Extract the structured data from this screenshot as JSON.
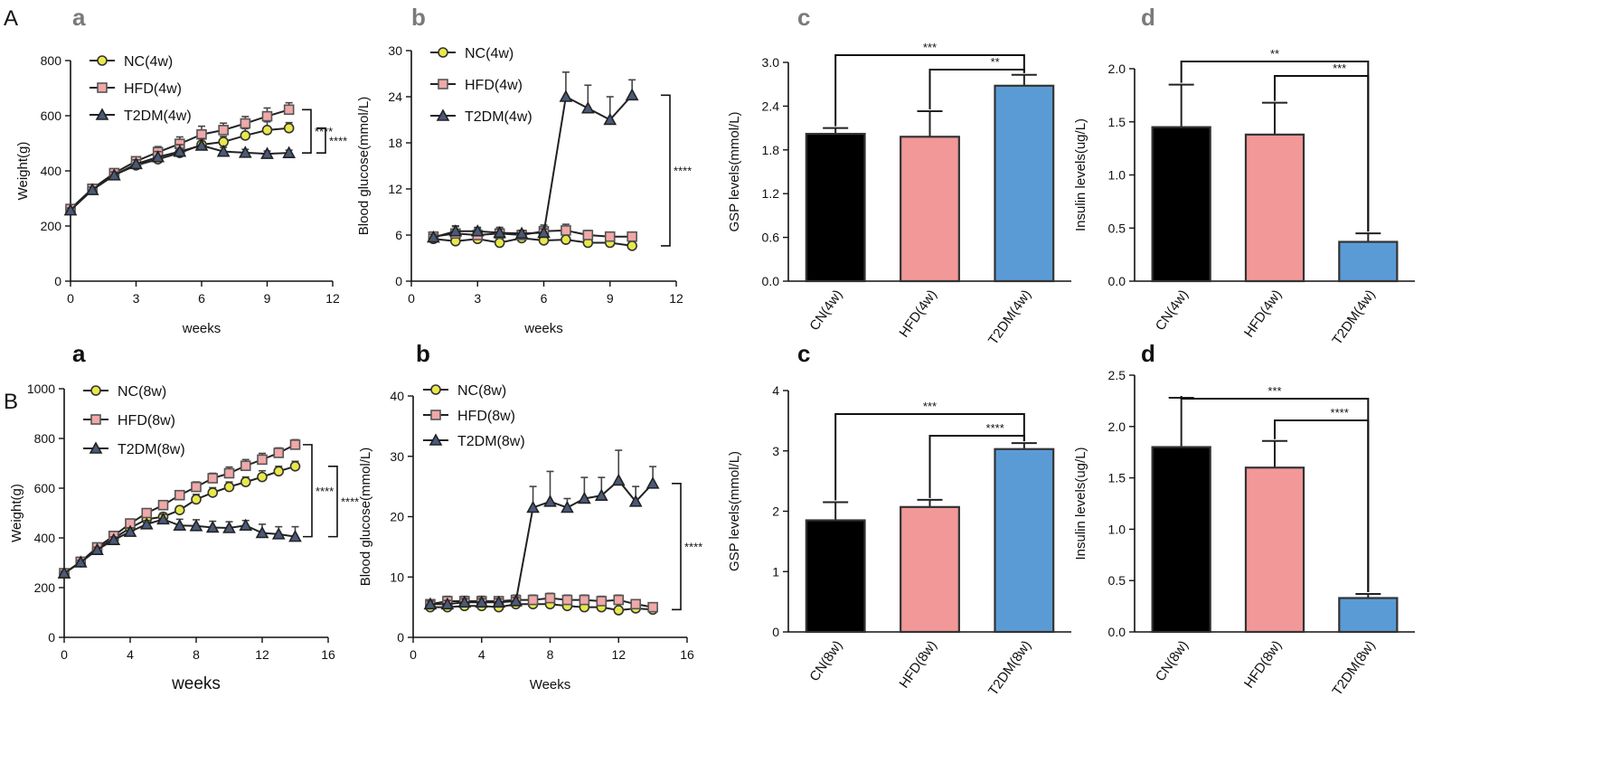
{
  "figure": {
    "row_labels": [
      "A",
      "B"
    ]
  },
  "colors": {
    "axis": "#111111",
    "nc_fill": "#e8e84a",
    "hfd_fill": "#f0a8a8",
    "t2dm_fill": "#4a5a78",
    "bar_cn": "#000000",
    "bar_hfd": "#f29898",
    "bar_t2dm": "#5b9bd5",
    "panel_letter_top": "#7a7a7a",
    "panel_letter_bottom": "#111111"
  },
  "chart_data": [
    {
      "id": "A-a",
      "panel": "a",
      "row": "A",
      "type": "line",
      "title": "",
      "xlabel": "weeks",
      "ylabel": "Weight(g)",
      "xlim": [
        0,
        12
      ],
      "ylim": [
        0,
        800
      ],
      "xticks": [
        0,
        3,
        6,
        9,
        12
      ],
      "yticks": [
        0,
        200,
        400,
        600,
        800
      ],
      "x": [
        0,
        1,
        2,
        3,
        4,
        5,
        6,
        7,
        8,
        9,
        10
      ],
      "series": [
        {
          "name": "NC(4w)",
          "marker": "circle",
          "values": [
            262,
            335,
            385,
            420,
            442,
            465,
            495,
            505,
            528,
            548,
            555
          ],
          "err": [
            8,
            10,
            12,
            15,
            20,
            25,
            30,
            20,
            25,
            30,
            20
          ]
        },
        {
          "name": "HFD(4w)",
          "marker": "square",
          "values": [
            262,
            335,
            392,
            435,
            468,
            498,
            532,
            548,
            572,
            598,
            622
          ],
          "err": [
            8,
            10,
            12,
            15,
            20,
            25,
            30,
            25,
            25,
            30,
            25
          ]
        },
        {
          "name": "T2DM(4w)",
          "marker": "triangle",
          "values": [
            257,
            331,
            384,
            425,
            450,
            470,
            492,
            470,
            466,
            462,
            465
          ],
          "err": [
            8,
            10,
            12,
            15,
            20,
            25,
            25,
            15,
            12,
            10,
            10
          ]
        }
      ],
      "significance": [
        {
          "label": "****",
          "from": "HFD(4w)",
          "to": "T2DM(4w)"
        },
        {
          "label": "****",
          "from": "NC(4w)",
          "to": "T2DM(4w)"
        }
      ]
    },
    {
      "id": "A-b",
      "panel": "b",
      "row": "A",
      "type": "line",
      "title": "",
      "xlabel": "weeks",
      "ylabel": "Blood glucose(mmol/L)",
      "xlim": [
        0,
        12
      ],
      "ylim": [
        0,
        30
      ],
      "xticks": [
        0,
        3,
        6,
        9,
        12
      ],
      "yticks": [
        0,
        6,
        12,
        18,
        24,
        30
      ],
      "x": [
        1,
        2,
        3,
        4,
        5,
        6,
        7,
        8,
        9,
        10
      ],
      "series": [
        {
          "name": "NC(4w)",
          "marker": "circle",
          "values": [
            5.5,
            5.2,
            5.5,
            5.0,
            5.6,
            5.3,
            5.4,
            5.0,
            5.0,
            4.6
          ],
          "err": [
            0.3,
            0.4,
            0.5,
            0.4,
            0.4,
            0.4,
            0.6,
            0.4,
            0.4,
            0.4
          ]
        },
        {
          "name": "HFD(4w)",
          "marker": "square",
          "values": [
            5.8,
            6.2,
            6.0,
            6.2,
            6.0,
            6.5,
            6.6,
            6.0,
            5.8,
            5.8
          ],
          "err": [
            0.5,
            1.0,
            0.8,
            0.8,
            0.6,
            0.8,
            0.8,
            0.6,
            0.5,
            0.5
          ]
        },
        {
          "name": "T2DM(4w)",
          "marker": "triangle",
          "values": [
            5.7,
            6.5,
            6.5,
            6.3,
            6.2,
            6.3,
            24.0,
            22.5,
            21.0,
            24.2
          ],
          "err": [
            0.4,
            0.6,
            0.5,
            0.5,
            0.4,
            0.5,
            3.2,
            3.0,
            3.0,
            2.0
          ]
        }
      ],
      "significance": [
        {
          "label": "****",
          "from": "T2DM(4w)",
          "to": "NC(4w)"
        }
      ]
    },
    {
      "id": "A-c",
      "panel": "c",
      "row": "A",
      "type": "bar",
      "title": "",
      "xlabel": "",
      "ylabel": "GSP levels(mmol/L)",
      "ylim": [
        0,
        3.0
      ],
      "yticks": [
        "0.0",
        "0.6",
        "1.2",
        "1.8",
        "2.4",
        "3.0"
      ],
      "categories": [
        "CN(4w)",
        "HFD(4w)",
        "T2DM(4w)"
      ],
      "values": [
        2.02,
        1.98,
        2.68
      ],
      "err": [
        0.08,
        0.35,
        0.15
      ],
      "significance": [
        {
          "label": "***",
          "from": "CN(4w)",
          "to": "T2DM(4w)"
        },
        {
          "label": "**",
          "from": "HFD(4w)",
          "to": "T2DM(4w)"
        }
      ]
    },
    {
      "id": "A-d",
      "panel": "d",
      "row": "A",
      "type": "bar",
      "title": "",
      "xlabel": "",
      "ylabel": "Insulin levels(ug/L)",
      "ylim": [
        0,
        2.0
      ],
      "yticks": [
        "0.0",
        "0.5",
        "1.0",
        "1.5",
        "2.0"
      ],
      "categories": [
        "CN(4w)",
        "HFD(4w)",
        "T2DM(4w)"
      ],
      "values": [
        1.45,
        1.38,
        0.37
      ],
      "err": [
        0.4,
        0.3,
        0.08
      ],
      "significance": [
        {
          "label": "**",
          "from": "CN(4w)",
          "to": "T2DM(4w)"
        },
        {
          "label": "***",
          "from": "HFD(4w)",
          "to": "T2DM(4w)"
        }
      ]
    },
    {
      "id": "B-a",
      "panel": "a",
      "row": "B",
      "type": "line",
      "title": "",
      "xlabel": "weeks",
      "ylabel": "Weight(g)",
      "xlim": [
        0,
        16
      ],
      "ylim": [
        0,
        1000
      ],
      "xticks": [
        0,
        4,
        8,
        12,
        16
      ],
      "yticks": [
        0,
        200,
        400,
        600,
        800,
        1000
      ],
      "x": [
        0,
        1,
        2,
        3,
        4,
        5,
        6,
        7,
        8,
        9,
        10,
        11,
        12,
        13,
        14
      ],
      "series": [
        {
          "name": "NC(8w)",
          "marker": "circle",
          "values": [
            258,
            302,
            355,
            398,
            440,
            475,
            485,
            512,
            555,
            582,
            605,
            625,
            645,
            668,
            688
          ],
          "err": [
            8,
            8,
            10,
            12,
            15,
            15,
            15,
            15,
            20,
            20,
            20,
            20,
            25,
            20,
            20
          ]
        },
        {
          "name": "HFD(8w)",
          "marker": "square",
          "values": [
            258,
            304,
            362,
            408,
            458,
            500,
            532,
            572,
            605,
            640,
            660,
            690,
            715,
            742,
            775
          ],
          "err": [
            8,
            8,
            10,
            12,
            15,
            15,
            15,
            15,
            20,
            20,
            25,
            25,
            25,
            20,
            20
          ]
        },
        {
          "name": "T2DM(8w)",
          "marker": "triangle",
          "values": [
            258,
            302,
            352,
            392,
            425,
            455,
            475,
            450,
            448,
            442,
            440,
            450,
            420,
            415,
            405
          ],
          "err": [
            8,
            8,
            10,
            12,
            15,
            15,
            20,
            25,
            25,
            25,
            25,
            20,
            35,
            30,
            40
          ]
        }
      ],
      "significance": [
        {
          "label": "****",
          "from": "HFD(8w)",
          "to": "T2DM(8w)"
        },
        {
          "label": "****",
          "from": "NC(8w)",
          "to": "T2DM(8w)"
        }
      ]
    },
    {
      "id": "B-b",
      "panel": "b",
      "row": "B",
      "type": "line",
      "title": "",
      "xlabel": "Weeks",
      "ylabel": "Blood glucose(mmol/L)",
      "xlim": [
        0,
        16
      ],
      "ylim": [
        0,
        40
      ],
      "xticks": [
        0,
        4,
        8,
        12,
        16
      ],
      "yticks": [
        0,
        10,
        20,
        30,
        40
      ],
      "x": [
        1,
        2,
        3,
        4,
        5,
        6,
        7,
        8,
        9,
        10,
        11,
        12,
        13,
        14
      ],
      "series": [
        {
          "name": "NC(8w)",
          "marker": "circle",
          "values": [
            5.0,
            5.0,
            5.2,
            5.2,
            5.0,
            5.5,
            5.5,
            5.5,
            5.2,
            5.0,
            5.0,
            4.5,
            4.8,
            4.6
          ],
          "err": [
            0.5,
            0.5,
            0.8,
            0.8,
            0.6,
            0.6,
            0.8,
            0.8,
            0.6,
            0.6,
            0.6,
            0.5,
            0.6,
            0.5
          ]
        },
        {
          "name": "HFD(8w)",
          "marker": "square",
          "values": [
            5.5,
            6.0,
            6.0,
            6.0,
            6.0,
            6.2,
            6.2,
            6.5,
            6.2,
            6.2,
            6.0,
            6.2,
            5.5,
            5.0
          ],
          "err": [
            0.5,
            0.8,
            0.8,
            0.8,
            0.6,
            0.8,
            0.8,
            0.8,
            0.8,
            0.8,
            0.8,
            0.8,
            0.6,
            0.5
          ]
        },
        {
          "name": "T2DM(8w)",
          "marker": "triangle",
          "values": [
            5.5,
            5.5,
            5.8,
            5.8,
            5.8,
            6.0,
            21.5,
            22.5,
            21.5,
            23.0,
            23.5,
            26.0,
            22.5,
            25.5
          ],
          "err": [
            0.5,
            0.6,
            0.6,
            0.6,
            0.6,
            0.6,
            3.5,
            5.0,
            1.5,
            3.5,
            3.0,
            5.0,
            2.5,
            2.8
          ]
        }
      ],
      "significance": [
        {
          "label": "****",
          "from": "T2DM(8w)",
          "to": "NC(8w)"
        }
      ]
    },
    {
      "id": "B-c",
      "panel": "c",
      "row": "B",
      "type": "bar",
      "title": "",
      "xlabel": "",
      "ylabel": "GSP levels(mmol/L)",
      "ylim": [
        0,
        4
      ],
      "yticks": [
        "0",
        "1",
        "2",
        "3",
        "4"
      ],
      "categories": [
        "CN(8w)",
        "HFD(8w)",
        "T2DM(8w)"
      ],
      "values": [
        1.85,
        2.07,
        3.03
      ],
      "err": [
        0.3,
        0.12,
        0.1
      ],
      "significance": [
        {
          "label": "***",
          "from": "CN(8w)",
          "to": "T2DM(8w)"
        },
        {
          "label": "****",
          "from": "HFD(8w)",
          "to": "T2DM(8w)"
        }
      ]
    },
    {
      "id": "B-d",
      "panel": "d",
      "row": "B",
      "type": "bar",
      "title": "",
      "xlabel": "",
      "ylabel": "Insulin levels(ug/L)",
      "ylim": [
        0,
        2.5
      ],
      "yticks": [
        "0.0",
        "0.5",
        "1.0",
        "1.5",
        "2.0",
        "2.5"
      ],
      "categories": [
        "CN(8w)",
        "HFD(8w)",
        "T2DM(8w)"
      ],
      "values": [
        1.8,
        1.6,
        0.33
      ],
      "err": [
        0.48,
        0.26,
        0.04
      ],
      "significance": [
        {
          "label": "***",
          "from": "CN(8w)",
          "to": "T2DM(8w)"
        },
        {
          "label": "****",
          "from": "HFD(8w)",
          "to": "T2DM(8w)"
        }
      ]
    }
  ]
}
